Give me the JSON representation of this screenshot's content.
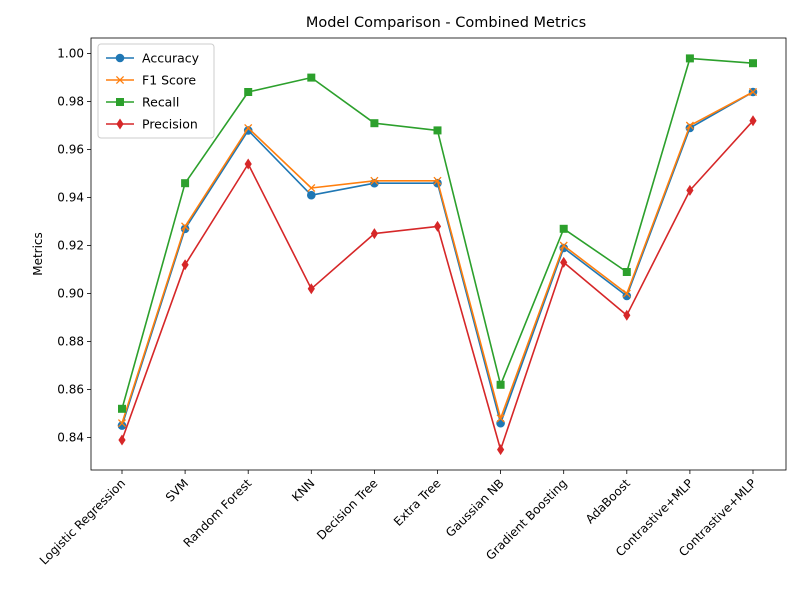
{
  "chart_data": {
    "type": "line",
    "title": "Model Comparison - Combined Metrics",
    "xlabel": "",
    "ylabel": "Metrics",
    "ylim": [
      0.8265,
      1.0065
    ],
    "yticks": [
      0.84,
      0.86,
      0.88,
      0.9,
      0.92,
      0.94,
      0.96,
      0.98,
      1.0
    ],
    "ytick_labels": [
      "0.84",
      "0.86",
      "0.88",
      "0.90",
      "0.92",
      "0.94",
      "0.96",
      "0.98",
      "1.00"
    ],
    "grid": false,
    "legend_position": "top-left",
    "categories": [
      "Logistic Regression",
      "SVM",
      "Random Forest",
      "KNN",
      "Decision Tree",
      "Extra Tree",
      "Gaussian NB",
      "Gradient Boosting",
      "AdaBoost",
      "Contrastive+MLP",
      "Contrastive+MLP"
    ],
    "series": [
      {
        "name": "Accuracy",
        "color": "#1f77b4",
        "marker": "circle",
        "values": [
          0.845,
          0.927,
          0.968,
          0.941,
          0.946,
          0.946,
          0.846,
          0.919,
          0.899,
          0.969,
          0.984
        ]
      },
      {
        "name": "F1 Score",
        "color": "#ff7f0e",
        "marker": "x",
        "values": [
          0.846,
          0.928,
          0.969,
          0.944,
          0.947,
          0.947,
          0.848,
          0.92,
          0.9,
          0.97,
          0.984
        ]
      },
      {
        "name": "Recall",
        "color": "#2ca02c",
        "marker": "square",
        "values": [
          0.852,
          0.946,
          0.984,
          0.99,
          0.971,
          0.968,
          0.862,
          0.927,
          0.909,
          0.998,
          0.996
        ]
      },
      {
        "name": "Precision",
        "color": "#d62728",
        "marker": "diamond",
        "values": [
          0.839,
          0.912,
          0.954,
          0.902,
          0.925,
          0.928,
          0.835,
          0.913,
          0.891,
          0.943,
          0.972
        ]
      }
    ]
  }
}
